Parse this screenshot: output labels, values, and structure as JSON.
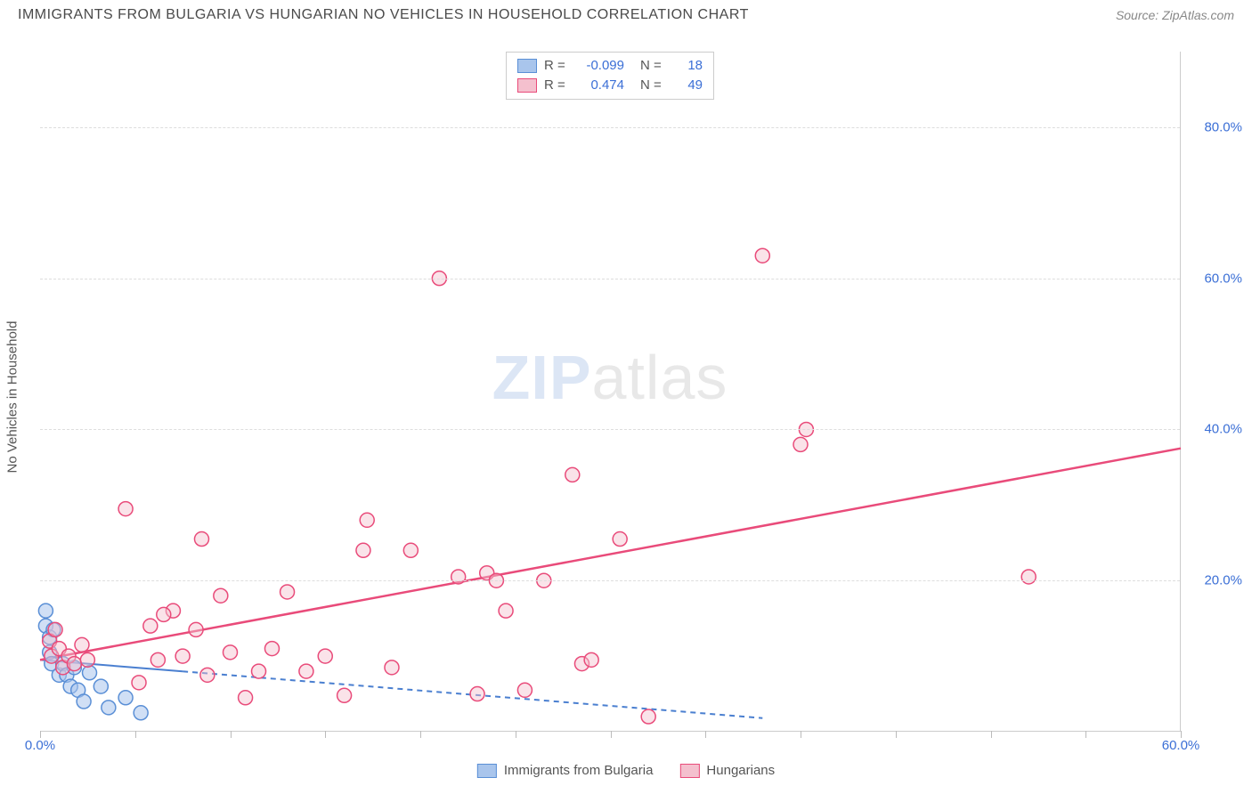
{
  "title": "IMMIGRANTS FROM BULGARIA VS HUNGARIAN NO VEHICLES IN HOUSEHOLD CORRELATION CHART",
  "source": "Source: ZipAtlas.com",
  "y_axis_label": "No Vehicles in Household",
  "watermark_a": "ZIP",
  "watermark_b": "atlas",
  "chart": {
    "type": "scatter",
    "background_color": "#ffffff",
    "grid_color": "#dddddd",
    "axis_color": "#cccccc",
    "tick_label_color": "#3b6fd6",
    "tick_fontsize": 15,
    "xlim": [
      0,
      60
    ],
    "ylim": [
      0,
      90
    ],
    "y_ticks": [
      20,
      40,
      60,
      80
    ],
    "y_tick_labels": [
      "20.0%",
      "40.0%",
      "60.0%",
      "80.0%"
    ],
    "x_ticks": [
      0,
      5,
      10,
      15,
      20,
      25,
      30,
      35,
      40,
      45,
      50,
      55,
      60
    ],
    "x_tick_labels": {
      "0": "0.0%",
      "60": "60.0%"
    },
    "marker_radius": 8,
    "marker_stroke_width": 1.5,
    "series": [
      {
        "name": "Immigrants from Bulgaria",
        "fill_color": "#a9c5ec",
        "stroke_color": "#5a8fd6",
        "fill_opacity": 0.55,
        "R": "-0.099",
        "N": "18",
        "trend": {
          "x1": 0,
          "y1": 9.5,
          "x2": 38,
          "y2": 1.8,
          "color": "#4a7fd0",
          "width": 2,
          "dash": "6 5",
          "solid_until_x": 7.5
        },
        "points": [
          [
            0.3,
            16
          ],
          [
            0.3,
            14
          ],
          [
            0.5,
            12.5
          ],
          [
            0.5,
            10.5
          ],
          [
            0.6,
            9
          ],
          [
            0.7,
            13.5
          ],
          [
            1.0,
            7.5
          ],
          [
            1.2,
            9
          ],
          [
            1.4,
            7.5
          ],
          [
            1.6,
            6
          ],
          [
            1.8,
            8.5
          ],
          [
            2.0,
            5.5
          ],
          [
            2.3,
            4
          ],
          [
            2.6,
            7.8
          ],
          [
            3.2,
            6
          ],
          [
            3.6,
            3.2
          ],
          [
            4.5,
            4.5
          ],
          [
            5.3,
            2.5
          ]
        ]
      },
      {
        "name": "Hungarians",
        "fill_color": "#f4c0ce",
        "stroke_color": "#e94b7a",
        "fill_opacity": 0.45,
        "R": "0.474",
        "N": "49",
        "trend": {
          "x1": 0,
          "y1": 9.5,
          "x2": 60,
          "y2": 37.5,
          "color": "#e94b7a",
          "width": 2.5,
          "dash": "",
          "solid_until_x": 60
        },
        "points": [
          [
            0.5,
            12
          ],
          [
            0.6,
            10
          ],
          [
            0.8,
            13.5
          ],
          [
            1.0,
            11
          ],
          [
            1.2,
            8.5
          ],
          [
            1.5,
            10
          ],
          [
            1.8,
            9
          ],
          [
            2.2,
            11.5
          ],
          [
            2.5,
            9.5
          ],
          [
            4.5,
            29.5
          ],
          [
            5.2,
            6.5
          ],
          [
            5.8,
            14
          ],
          [
            6.2,
            9.5
          ],
          [
            7.0,
            16
          ],
          [
            7.5,
            10
          ],
          [
            8.2,
            13.5
          ],
          [
            8.5,
            25.5
          ],
          [
            8.8,
            7.5
          ],
          [
            9.5,
            18
          ],
          [
            10.0,
            10.5
          ],
          [
            10.8,
            4.5
          ],
          [
            11.5,
            8
          ],
          [
            12.2,
            11
          ],
          [
            13.0,
            18.5
          ],
          [
            14.0,
            8
          ],
          [
            15.0,
            10
          ],
          [
            16.0,
            4.8
          ],
          [
            17.0,
            24
          ],
          [
            17.2,
            28
          ],
          [
            18.5,
            8.5
          ],
          [
            19.5,
            24
          ],
          [
            21.0,
            60
          ],
          [
            22.0,
            20.5
          ],
          [
            23.0,
            5
          ],
          [
            23.5,
            21
          ],
          [
            24.0,
            20
          ],
          [
            24.5,
            16
          ],
          [
            25.5,
            5.5
          ],
          [
            26.5,
            20
          ],
          [
            28.0,
            34
          ],
          [
            28.5,
            9
          ],
          [
            29.0,
            9.5
          ],
          [
            30.5,
            25.5
          ],
          [
            32.0,
            2
          ],
          [
            38.0,
            63
          ],
          [
            40.0,
            38
          ],
          [
            40.3,
            40
          ],
          [
            52.0,
            20.5
          ],
          [
            6.5,
            15.5
          ]
        ]
      }
    ]
  },
  "legend_top_labels": {
    "R": "R =",
    "N": "N ="
  },
  "legend_bottom": [
    {
      "label": "Immigrants from Bulgaria",
      "fill": "#a9c5ec",
      "stroke": "#5a8fd6"
    },
    {
      "label": "Hungarians",
      "fill": "#f4c0ce",
      "stroke": "#e94b7a"
    }
  ]
}
